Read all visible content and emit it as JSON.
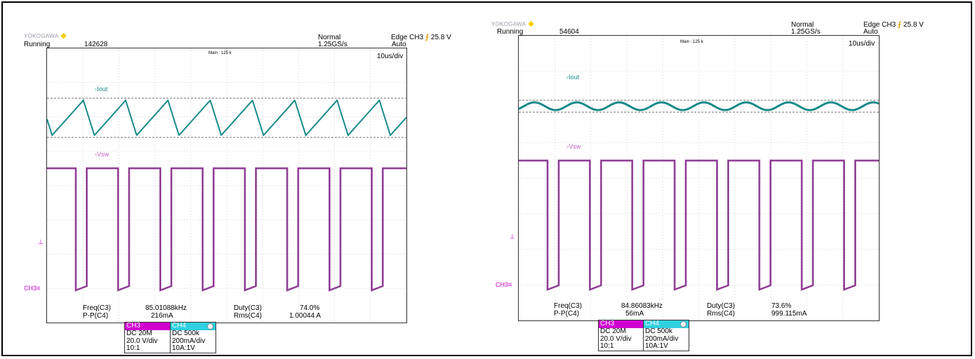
{
  "colors": {
    "iout": "#1a8a8a",
    "vsw": "#7a1a80",
    "ch3": "#d000d0",
    "ch4": "#30d0e0"
  },
  "scopes": [
    {
      "logo": "YOKOGAWA",
      "status": "Running",
      "count": "142628",
      "mode": "Normal",
      "rate": "1.25GS/s",
      "trigger": "Edge CH3",
      "trigger_icon": "rising-edge-icon",
      "trigger_level": "25.8 V",
      "trigger_mode": "Auto",
      "main": "Main : 125 k",
      "timediv": "10us/div",
      "iout_label": "Iout",
      "vsw_label": "Vsw",
      "ch_marker": "CH3",
      "meas": {
        "freq_label": "Freq(C3)",
        "freq_value": "85.01088kHz",
        "duty_label": "Duty(C3)",
        "duty_value": "74.0%",
        "pp_label": "P-P(C4)",
        "pp_value": "216mA",
        "rms_label": "Rms(C4)",
        "rms_value": "1.00044 A"
      },
      "ch3": {
        "name": "CH3",
        "coupling": "DC 20M",
        "vdiv": "20.0 V/div",
        "probe": "10:1"
      },
      "ch4": {
        "name": "CH4",
        "coupling": "DC 500k",
        "vdiv": "200mA/div",
        "probe": "10A:1V"
      },
      "wave": {
        "periods": 8.5,
        "iout_pp_div": 1.08,
        "duty": 0.74
      }
    },
    {
      "logo": "YOKOGAWA",
      "status": "Running",
      "count": "54604",
      "mode": "Normal",
      "rate": "1.25GS/s",
      "trigger": "Edge CH3",
      "trigger_icon": "rising-edge-icon",
      "trigger_level": "25.8 V",
      "trigger_mode": "Auto",
      "main": "Main : 125 k",
      "timediv": "10us/div",
      "iout_label": "Iout",
      "vsw_label": "Vsw",
      "ch_marker": "CH3",
      "meas": {
        "freq_label": "Freq(C3)",
        "freq_value": "84.86083kHz",
        "duty_label": "Duty(C3)",
        "duty_value": "73.6%",
        "pp_label": "P-P(C4)",
        "pp_value": "56mA",
        "rms_label": "Rms(C4)",
        "rms_value": "999.115mA"
      },
      "ch3": {
        "name": "CH3",
        "coupling": "DC 20M",
        "vdiv": "20.0 V/div",
        "probe": "10:1"
      },
      "ch4": {
        "name": "CH4",
        "coupling": "DC 500k",
        "vdiv": "200mA/div",
        "probe": "10A:1V"
      },
      "wave": {
        "periods": 8.5,
        "iout_pp_div": 0.28,
        "duty": 0.736
      }
    }
  ]
}
